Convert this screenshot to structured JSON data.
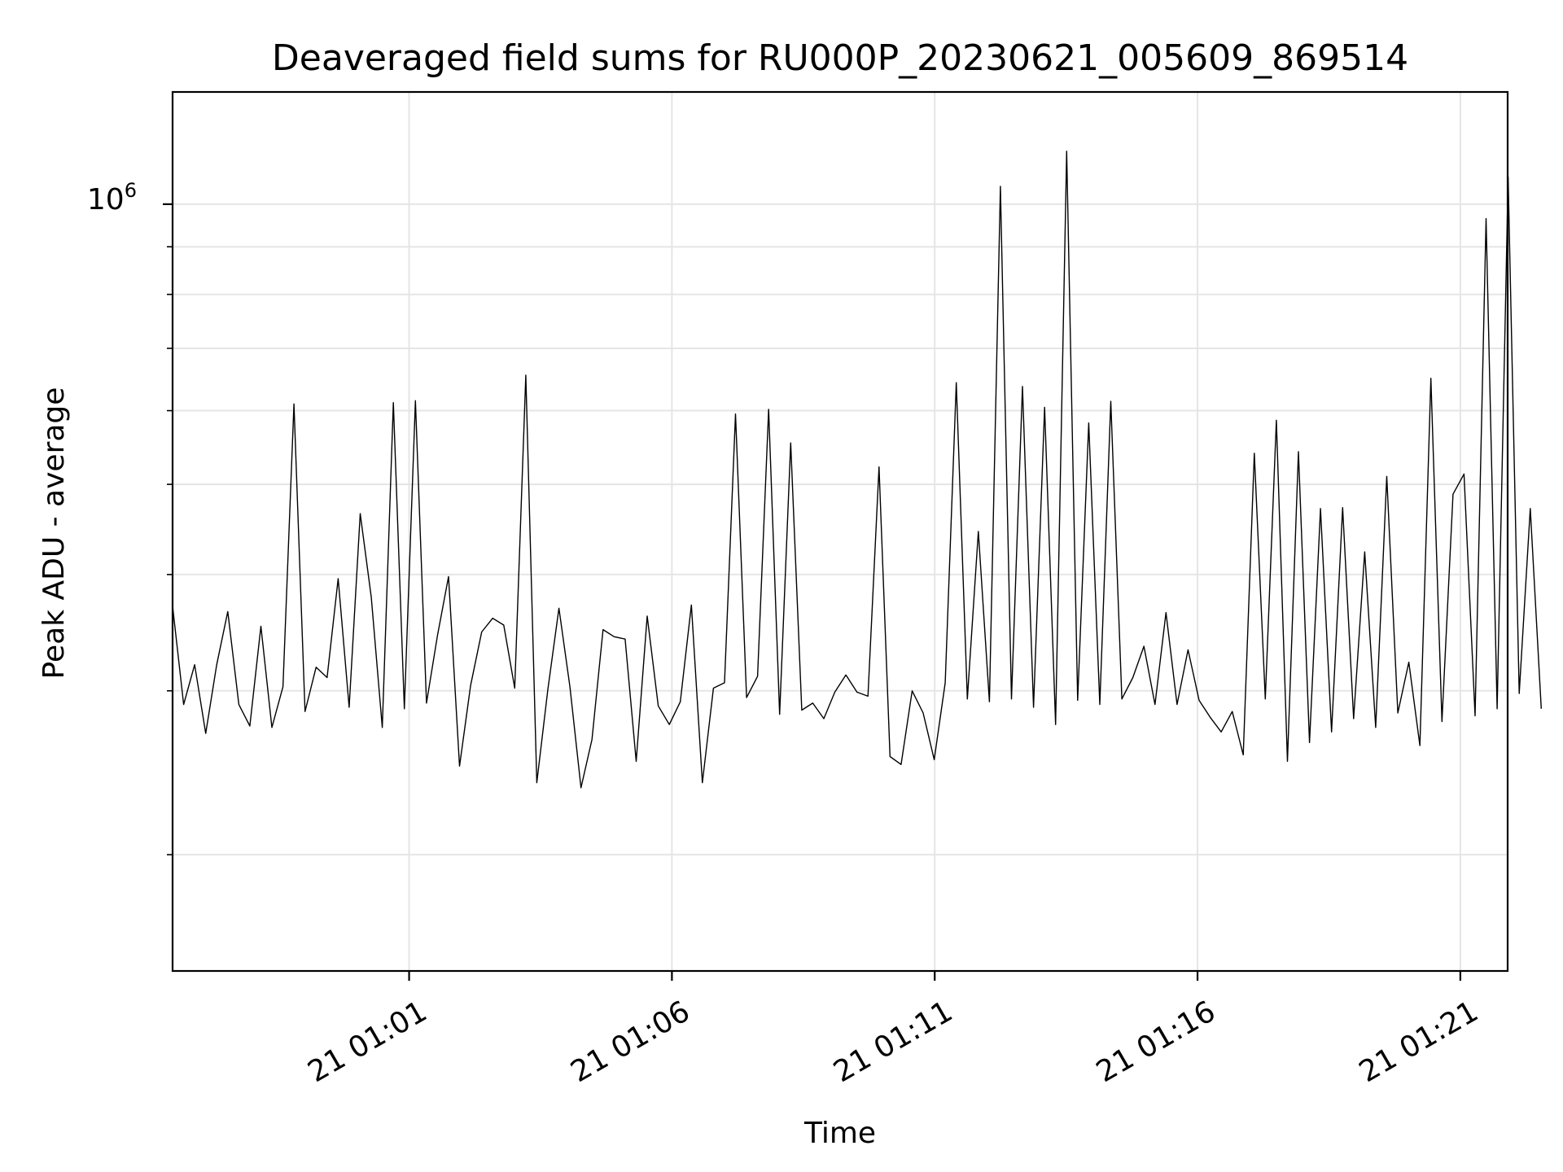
{
  "chart_data": {
    "type": "line",
    "title": "Deaveraged field sums for RU000P_20230621_005609_869514",
    "xlabel": "Time",
    "ylabel": "Peak ADU - average",
    "yscale": "log",
    "grid": true,
    "line_color": "#000000",
    "grid_color": "#e5e5e5",
    "x_tick_labels": [
      "21 01:01",
      "21 01:06",
      "21 01:11",
      "21 01:16",
      "21 01:21"
    ],
    "y_tick_label": {
      "base": "10",
      "exponent": "6"
    },
    "xlim": [
      "2023-06-21 00:56:30",
      "2023-06-21 01:21:54"
    ],
    "ylim": [
      150000,
      1320000
    ],
    "x_start": "2023-06-21 00:56:30",
    "x_step_seconds": 12.6,
    "values": [
      370000,
      290000,
      320000,
      270000,
      320000,
      365000,
      290000,
      275000,
      352000,
      274000,
      303000,
      610000,
      285000,
      318000,
      310000,
      396000,
      288000,
      465000,
      378000,
      274000,
      612000,
      287000,
      615000,
      291000,
      344000,
      398000,
      249000,
      304000,
      347000,
      359000,
      353000,
      302000,
      655000,
      239000,
      301000,
      368000,
      303000,
      236000,
      266000,
      349000,
      343000,
      341000,
      252000,
      361000,
      289000,
      276000,
      292000,
      371000,
      239000,
      302000,
      306000,
      595000,
      295000,
      311000,
      602000,
      283000,
      554000,
      286000,
      291000,
      280000,
      299000,
      312000,
      299000,
      296000,
      522000,
      255000,
      250000,
      300000,
      284000,
      253000,
      306000,
      643000,
      294000,
      445000,
      292000,
      1045000,
      294000,
      637000,
      288000,
      605000,
      276000,
      1140000,
      293000,
      582000,
      290000,
      614000,
      294000,
      310000,
      335000,
      290000,
      364000,
      290000,
      332000,
      293000,
      281000,
      271000,
      285000,
      256000,
      540000,
      294000,
      586000,
      252000,
      542000,
      264000,
      471000,
      271000,
      472000,
      280000,
      423000,
      274000,
      510000,
      284000,
      322000,
      262000,
      650000,
      278000,
      488000,
      513000,
      282000,
      965000,
      287000,
      1070000,
      298000,
      471000,
      287000
    ]
  }
}
